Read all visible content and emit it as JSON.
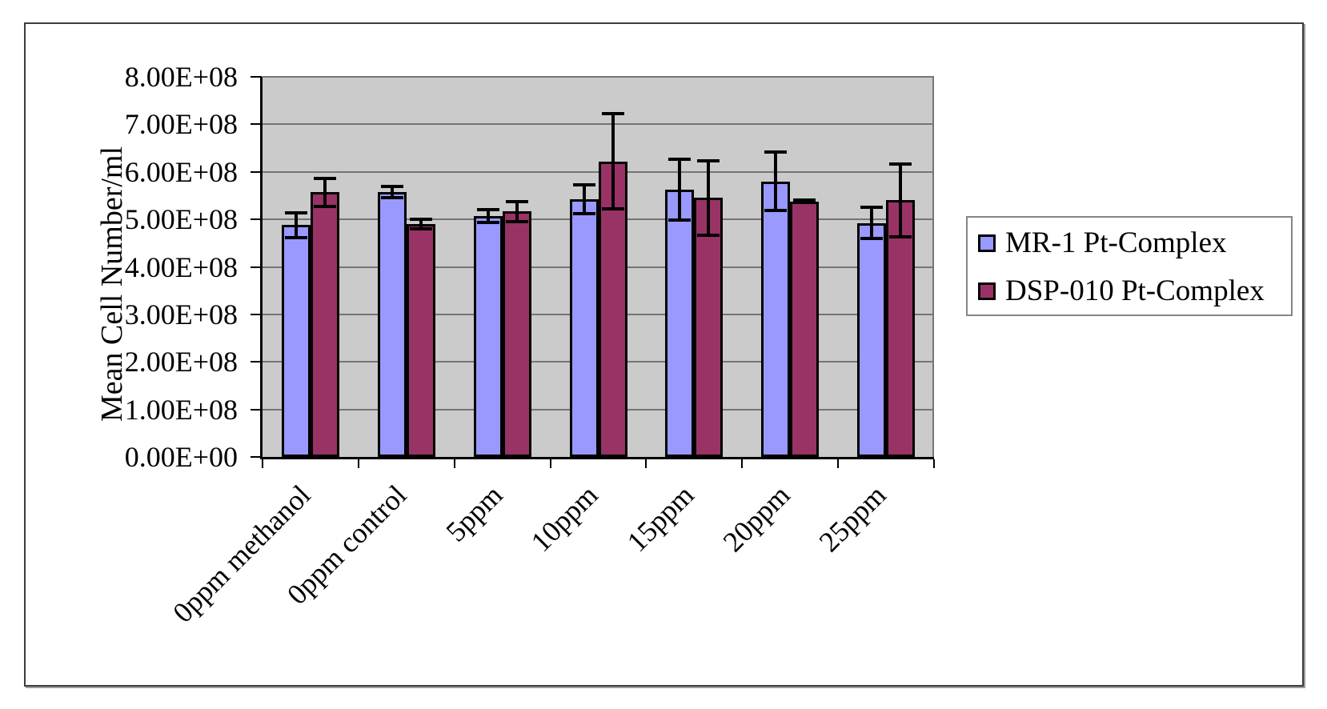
{
  "chart_data": {
    "type": "bar",
    "title": "",
    "xlabel": "",
    "ylabel": "Mean Cell Number/ml",
    "categories": [
      "0ppm methanol",
      "0ppm control",
      "5ppm",
      "10ppm",
      "15ppm",
      "20ppm",
      "25ppm"
    ],
    "series": [
      {
        "name": "MR-1 Pt-Complex",
        "color": "#9999FF",
        "values": [
          488000000.0,
          557000000.0,
          507000000.0,
          542000000.0,
          562000000.0,
          580000000.0,
          492000000.0
        ],
        "errors": [
          26000000.0,
          12000000.0,
          13000000.0,
          30000000.0,
          64000000.0,
          62000000.0,
          33000000.0
        ]
      },
      {
        "name": "DSP-010 Pt-Complex",
        "color": "#993366",
        "values": [
          557000000.0,
          490000000.0,
          517000000.0,
          622000000.0,
          545000000.0,
          538000000.0,
          540000000.0
        ],
        "errors": [
          29000000.0,
          10000000.0,
          21000000.0,
          100000000.0,
          78000000.0,
          2000000.0,
          77000000.0
        ]
      }
    ],
    "y_axis": {
      "min": 0,
      "max": 800000000.0,
      "tick_step": 100000000.0,
      "tick_labels": [
        "0.00E+00",
        "1.00E+08",
        "2.00E+08",
        "3.00E+08",
        "4.00E+08",
        "5.00E+08",
        "6.00E+08",
        "7.00E+08",
        "8.00E+08"
      ]
    },
    "error_bars": true,
    "grid": true,
    "legend_position": "right",
    "plot_bg": "#CBCBCB",
    "colors": {
      "grid": "#757575",
      "axis": "#000000",
      "bar_border": "#000000",
      "frame_border": "#3D3D3D",
      "legend_border": "#858585"
    }
  }
}
